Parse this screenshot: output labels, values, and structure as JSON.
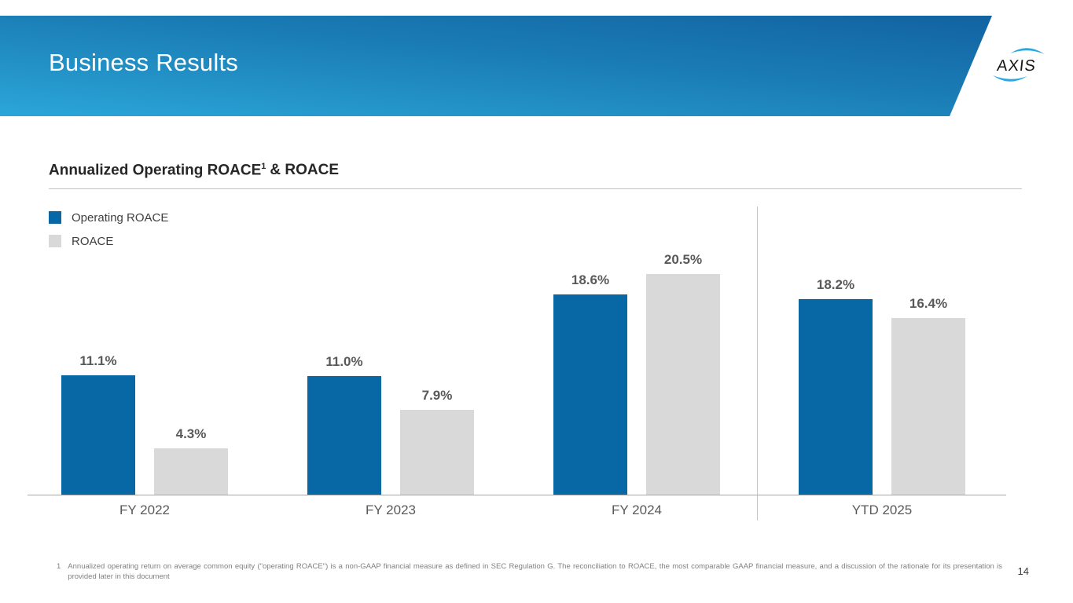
{
  "header": {
    "title": "Business Results",
    "logo_text": "AXIS"
  },
  "section": {
    "title_pre": "Annualized Operating ROACE",
    "title_sup": "1",
    "title_post": "& ROACE"
  },
  "legend": [
    {
      "label": "Operating ROACE",
      "color": "#0768a5"
    },
    {
      "label": "ROACE",
      "color": "#d9d9d9"
    }
  ],
  "chart_data": {
    "type": "bar",
    "title": "Annualized Operating ROACE & ROACE",
    "categories": [
      "FY 2022",
      "FY 2023",
      "FY 2024",
      "YTD 2025"
    ],
    "series": [
      {
        "name": "Operating ROACE",
        "color": "#0768a5",
        "values": [
          11.1,
          11.0,
          18.6,
          18.2
        ]
      },
      {
        "name": "ROACE",
        "color": "#d9d9d9",
        "values": [
          4.3,
          7.9,
          20.5,
          16.4
        ]
      }
    ],
    "value_label_format": "{value}%",
    "xlabel": "",
    "ylabel": "",
    "ylim": [
      0,
      22
    ],
    "grid": false,
    "legend_position": "top-left",
    "notes": "vertical divider separates YTD 2025 group from full-year groups"
  },
  "footnote": {
    "number": "1",
    "text": "Annualized operating return on average common equity (\"operating ROACE\") is a non-GAAP financial measure as defined in SEC Regulation G. The reconciliation to ROACE, the most comparable GAAP financial measure, and a discussion of the rationale for its presentation is provided later in this document"
  },
  "page_number": "14",
  "colors": {
    "banner_gradient_start": "#2ba6d8",
    "banner_gradient_end": "#1160a0",
    "bar_blue": "#0768a5",
    "bar_gray": "#d9d9d9",
    "label_gray": "#595959",
    "logo_swoosh": "#2aa7e0"
  }
}
